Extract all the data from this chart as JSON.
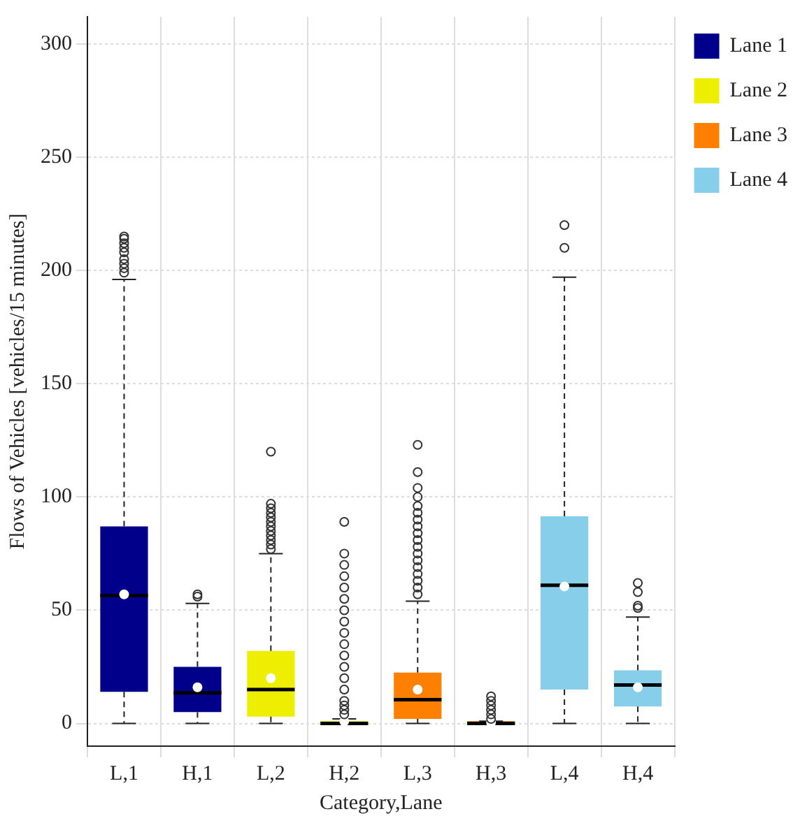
{
  "chart_data": {
    "type": "box",
    "xlabel": "Category,Lane",
    "ylabel": "Flows of Vehicles [vehicles/15 minutes]",
    "categories": [
      "L,1",
      "H,1",
      "L,2",
      "H,2",
      "L,3",
      "H,3",
      "L,4",
      "H,4"
    ],
    "ylim": [
      -10,
      312
    ],
    "yticks": [
      0,
      50,
      100,
      150,
      200,
      250,
      300
    ],
    "grid": true,
    "legend": "top right",
    "series": [
      {
        "name": "Lane 1",
        "color": "#00008b",
        "boxes": [
          {
            "low": 0,
            "q1": 14,
            "median": 56.5,
            "q3": 87,
            "high": 196,
            "mean": 57,
            "outliers": [
              199,
              201,
              203,
              205,
              208,
              210,
              212,
              214,
              215
            ]
          },
          {
            "low": 0,
            "q1": 5,
            "median": 13.5,
            "q3": 25,
            "high": 53,
            "mean": 16,
            "outliers": [
              56,
              57
            ]
          },
          null,
          null,
          null,
          null,
          null,
          null
        ]
      },
      {
        "name": "Lane 2",
        "color": "#eeee00",
        "boxes": [
          null,
          null,
          {
            "low": 0,
            "q1": 3,
            "median": 15,
            "q3": 32,
            "high": 75,
            "mean": 20,
            "outliers": [
              77,
              79,
              81,
              83,
              85,
              87,
              89,
              91,
              93,
              95,
              97,
              120
            ]
          },
          {
            "low": 0,
            "q1": 0,
            "median": 0,
            "q3": 1,
            "high": 2,
            "mean": 1,
            "outliers": [
              4,
              6,
              8,
              10,
              15,
              20,
              25,
              30,
              35,
              40,
              45,
              50,
              55,
              60,
              65,
              70,
              75,
              89
            ]
          },
          null,
          null,
          null,
          null
        ]
      },
      {
        "name": "Lane 3",
        "color": "#ff7f00",
        "boxes": [
          null,
          null,
          null,
          null,
          {
            "low": 0,
            "q1": 2,
            "median": 10.5,
            "q3": 22.5,
            "high": 54,
            "mean": 15,
            "outliers": [
              57,
              60,
              63,
              66,
              69,
              72,
              75,
              78,
              81,
              84,
              87,
              90,
              93,
              96,
              100,
              104,
              111,
              123
            ]
          },
          {
            "low": 0,
            "q1": 0,
            "median": 0,
            "q3": 1,
            "high": 1,
            "mean": 0.5,
            "outliers": [
              2,
              4,
              6,
              8,
              10,
              12
            ]
          },
          null,
          null
        ]
      },
      {
        "name": "Lane 4",
        "color": "#87ceeb",
        "boxes": [
          null,
          null,
          null,
          null,
          null,
          null,
          {
            "low": 0,
            "q1": 15,
            "median": 61,
            "q3": 91.5,
            "high": 197,
            "mean": 60.5,
            "outliers": [
              210,
              220
            ]
          },
          {
            "low": 0,
            "q1": 7.5,
            "median": 17,
            "q3": 23.5,
            "high": 47,
            "mean": 16,
            "outliers": [
              51,
              52,
              58,
              62
            ]
          }
        ]
      }
    ]
  }
}
